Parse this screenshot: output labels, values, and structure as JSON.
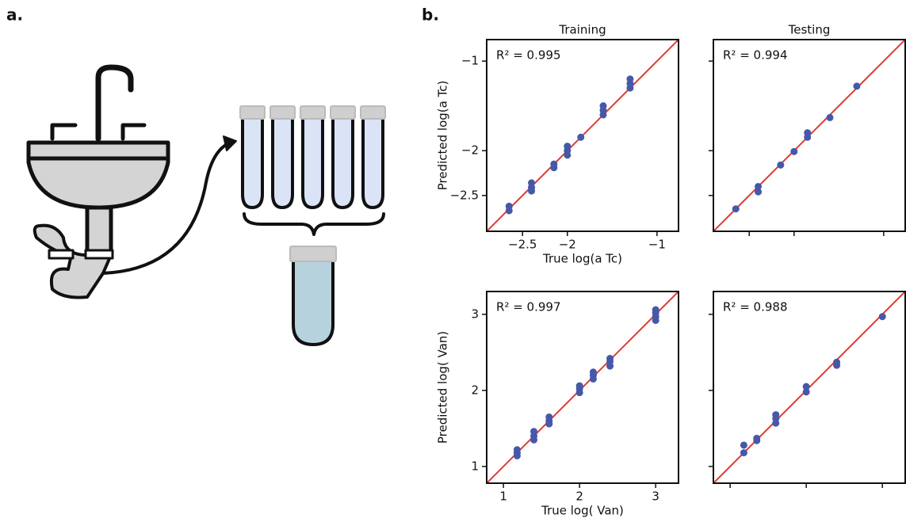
{
  "panel_labels": [
    "a.",
    "b."
  ],
  "chart_data": [
    {
      "type": "scatter",
      "title": "Training",
      "ylabel": "Predicted log(a Tc)",
      "xlabel": "True log(a Tc)",
      "annotation": "R² = 0.995",
      "color": "#4658a8",
      "line_color": "#e03a32",
      "xlim": [
        -2.9,
        -0.76
      ],
      "ylim": [
        -2.9,
        -0.76
      ],
      "xticks": [
        {
          "value": -2.5,
          "label": "−2.5"
        },
        {
          "value": -2,
          "label": "−2"
        },
        {
          "value": -1,
          "label": "−1"
        }
      ],
      "yticks": [
        {
          "value": -1,
          "label": "−1"
        },
        {
          "value": -2,
          "label": "−2"
        },
        {
          "value": -2.5,
          "label": "−2.5"
        }
      ],
      "x_tick_labels": true,
      "y_tick_labels": true,
      "x": [
        -2.65,
        -2.65,
        -2.4,
        -2.4,
        -2.4,
        -2.15,
        -2.15,
        -2.0,
        -2.0,
        -2.0,
        -1.85,
        -1.6,
        -1.6,
        -1.6,
        -1.3,
        -1.3,
        -1.3
      ],
      "values": [
        -2.62,
        -2.67,
        -2.36,
        -2.41,
        -2.45,
        -2.15,
        -2.19,
        -1.95,
        -2.0,
        -2.05,
        -1.85,
        -1.5,
        -1.55,
        -1.6,
        -1.2,
        -1.25,
        -1.3
      ]
    },
    {
      "type": "scatter",
      "title": "Testing",
      "annotation": "R² = 0.994",
      "color": "#4658a8",
      "line_color": "#e03a32",
      "xlim": [
        -2.9,
        -0.76
      ],
      "ylim": [
        -2.9,
        -0.76
      ],
      "xticks": [
        -2.5,
        -2,
        -1
      ],
      "yticks": [
        -1,
        -2,
        -2.5
      ],
      "x_tick_labels": false,
      "y_tick_labels": false,
      "x": [
        -2.65,
        -2.4,
        -2.4,
        -2.15,
        -2.0,
        -1.85,
        -1.85,
        -1.6,
        -1.3
      ],
      "values": [
        -2.65,
        -2.4,
        -2.46,
        -2.16,
        -2.01,
        -1.8,
        -1.85,
        -1.63,
        -1.28
      ]
    },
    {
      "type": "scatter",
      "ylabel": "Predicted log( Van)",
      "xlabel": "True log( Van)",
      "annotation": "R² = 0.997",
      "color": "#4658a8",
      "line_color": "#e03a32",
      "xlim": [
        0.78,
        3.3
      ],
      "ylim": [
        0.78,
        3.3
      ],
      "xticks": [
        1,
        2,
        3
      ],
      "yticks": [
        1,
        2,
        3
      ],
      "x_tick_labels": true,
      "y_tick_labels": true,
      "x": [
        1.18,
        1.18,
        1.18,
        1.4,
        1.4,
        1.4,
        1.6,
        1.6,
        1.6,
        2.0,
        2.0,
        2.0,
        2.18,
        2.18,
        2.18,
        2.4,
        2.4,
        2.4,
        3.0,
        3.0,
        3.0,
        3.0
      ],
      "values": [
        1.14,
        1.18,
        1.22,
        1.35,
        1.4,
        1.46,
        1.56,
        1.6,
        1.65,
        1.97,
        2.02,
        2.06,
        2.15,
        2.2,
        2.24,
        2.32,
        2.38,
        2.42,
        2.92,
        2.97,
        3.02,
        3.06
      ]
    },
    {
      "type": "scatter",
      "annotation": "R² = 0.988",
      "color": "#4658a8",
      "line_color": "#e03a32",
      "xlim": [
        0.78,
        3.3
      ],
      "ylim": [
        0.78,
        3.3
      ],
      "xticks": [
        1,
        2,
        3
      ],
      "yticks": [
        1,
        2,
        3
      ],
      "x_tick_labels": false,
      "y_tick_labels": false,
      "x": [
        1.18,
        1.18,
        1.35,
        1.35,
        1.6,
        1.6,
        1.6,
        2.0,
        2.0,
        2.4,
        2.4,
        3.0
      ],
      "values": [
        1.18,
        1.28,
        1.34,
        1.37,
        1.57,
        1.63,
        1.68,
        1.98,
        2.05,
        2.33,
        2.37,
        2.97
      ]
    }
  ]
}
